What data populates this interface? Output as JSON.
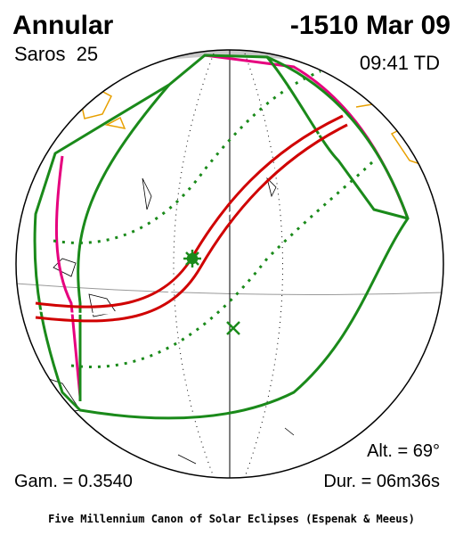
{
  "header": {
    "eclipse_type": "Annular",
    "date": "-1510 Mar 09",
    "saros": "Saros  25",
    "time": "09:41 TD"
  },
  "stats": {
    "altitude": "Alt. = 69°",
    "gamma": "Gam. = 0.3540",
    "duration": "Dur. = 06m36s"
  },
  "footer": "Five Millennium Canon of Solar Eclipses (Espenak & Meeus)"
}
